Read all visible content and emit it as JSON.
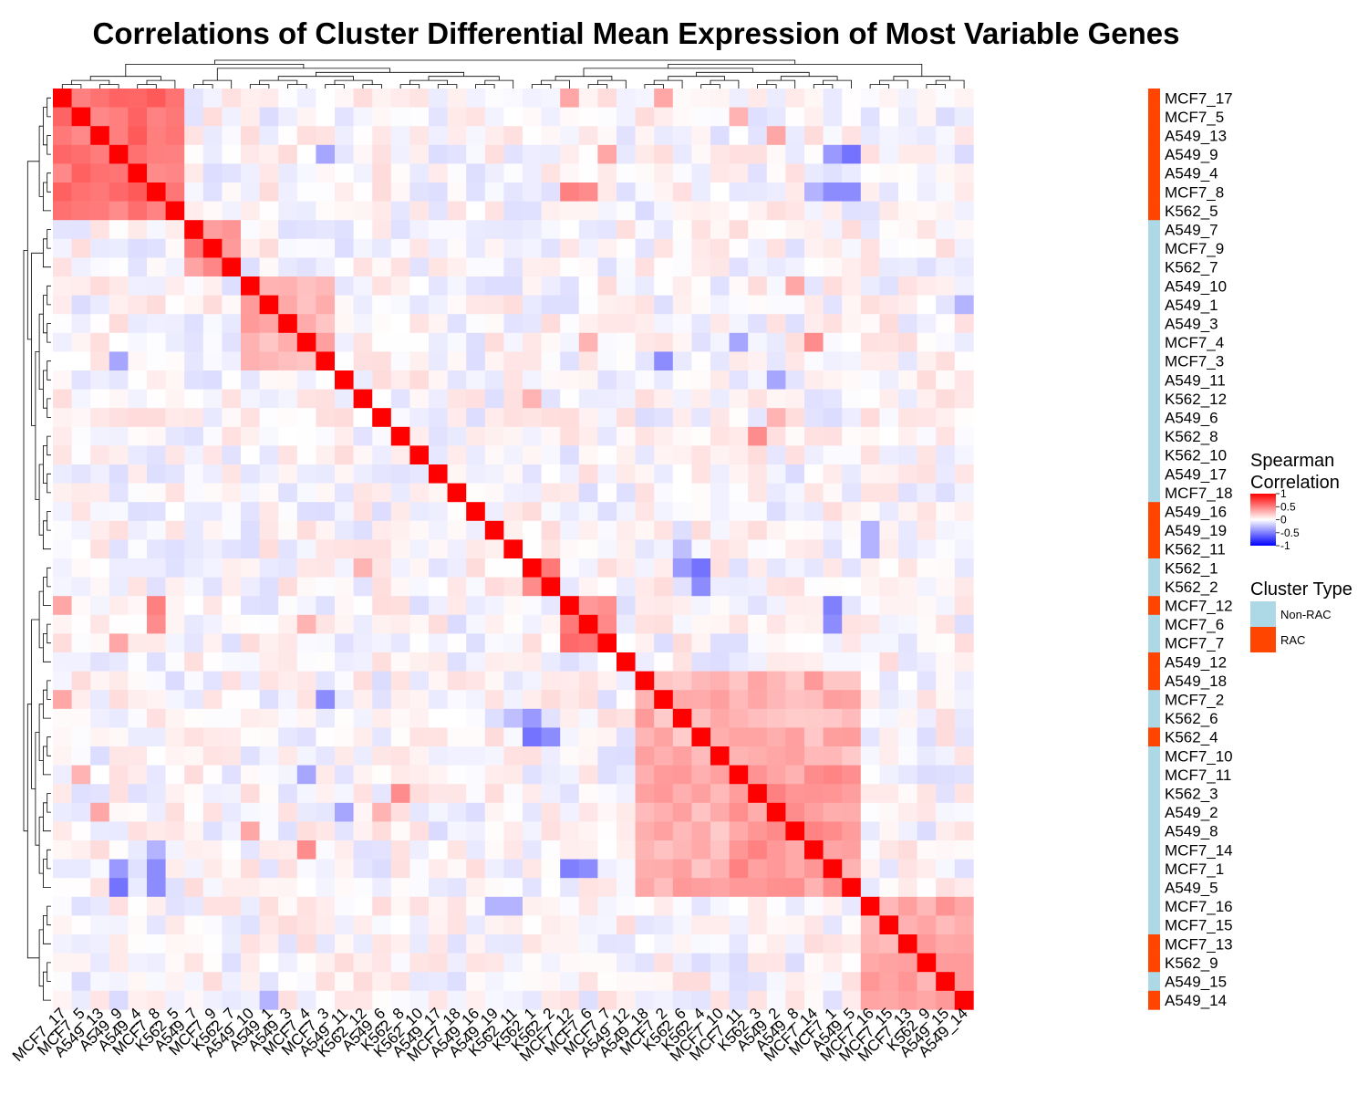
{
  "chart_data": {
    "type": "heatmap",
    "title": "Correlations of Cluster Differential Mean Expression of Most Variable Genes",
    "labels": [
      "MCF7_17",
      "MCF7_5",
      "A549_13",
      "A549_9",
      "A549_4",
      "MCF7_8",
      "K562_5",
      "A549_7",
      "MCF7_9",
      "K562_7",
      "A549_10",
      "A549_1",
      "A549_3",
      "MCF7_4",
      "MCF7_3",
      "A549_11",
      "K562_12",
      "A549_6",
      "K562_8",
      "K562_10",
      "A549_17",
      "MCF7_18",
      "A549_16",
      "A549_19",
      "K562_11",
      "K562_1",
      "K562_2",
      "MCF7_12",
      "MCF7_6",
      "MCF7_7",
      "A549_12",
      "A549_18",
      "MCF7_2",
      "K562_6",
      "K562_4",
      "MCF7_10",
      "MCF7_11",
      "K562_3",
      "A549_2",
      "A549_8",
      "MCF7_14",
      "MCF7_1",
      "A549_5",
      "MCF7_16",
      "MCF7_15",
      "MCF7_13",
      "K562_9",
      "A549_15",
      "A549_14"
    ],
    "cluster_type": [
      "RAC",
      "RAC",
      "RAC",
      "RAC",
      "RAC",
      "RAC",
      "RAC",
      "Non-RAC",
      "Non-RAC",
      "Non-RAC",
      "Non-RAC",
      "Non-RAC",
      "Non-RAC",
      "Non-RAC",
      "Non-RAC",
      "Non-RAC",
      "Non-RAC",
      "Non-RAC",
      "Non-RAC",
      "Non-RAC",
      "Non-RAC",
      "Non-RAC",
      "RAC",
      "RAC",
      "RAC",
      "Non-RAC",
      "Non-RAC",
      "RAC",
      "Non-RAC",
      "Non-RAC",
      "RAC",
      "RAC",
      "Non-RAC",
      "Non-RAC",
      "RAC",
      "Non-RAC",
      "Non-RAC",
      "Non-RAC",
      "Non-RAC",
      "Non-RAC",
      "Non-RAC",
      "Non-RAC",
      "Non-RAC",
      "Non-RAC",
      "Non-RAC",
      "RAC",
      "RAC",
      "Non-RAC",
      "RAC"
    ],
    "blocks": [
      {
        "start": 0,
        "end": 6,
        "value": 0.55
      },
      {
        "start": 7,
        "end": 9,
        "value": 0.45
      },
      {
        "start": 10,
        "end": 14,
        "value": 0.3
      },
      {
        "start": 25,
        "end": 26,
        "value": 0.55
      },
      {
        "start": 27,
        "end": 29,
        "value": 0.5
      },
      {
        "start": 31,
        "end": 42,
        "value": 0.3
      },
      {
        "start": 36,
        "end": 42,
        "value": 0.4
      },
      {
        "start": 43,
        "end": 48,
        "value": 0.35
      }
    ],
    "off_block_pairs": [
      {
        "a": 0,
        "b": 27,
        "value": 0.35
      },
      {
        "a": 5,
        "b": 27,
        "value": 0.5
      },
      {
        "a": 5,
        "b": 28,
        "value": 0.45
      },
      {
        "a": 3,
        "b": 29,
        "value": 0.35
      },
      {
        "a": 0,
        "b": 32,
        "value": 0.35
      },
      {
        "a": 5,
        "b": 41,
        "value": -0.45
      },
      {
        "a": 3,
        "b": 42,
        "value": -0.55
      },
      {
        "a": 5,
        "b": 42,
        "value": -0.45
      },
      {
        "a": 3,
        "b": 41,
        "value": -0.4
      },
      {
        "a": 14,
        "b": 32,
        "value": -0.45
      },
      {
        "a": 14,
        "b": 3,
        "value": -0.35
      },
      {
        "a": 25,
        "b": 34,
        "value": -0.55
      },
      {
        "a": 26,
        "b": 34,
        "value": -0.45
      },
      {
        "a": 25,
        "b": 33,
        "value": -0.4
      },
      {
        "a": 27,
        "b": 41,
        "value": -0.5
      },
      {
        "a": 28,
        "b": 41,
        "value": -0.45
      },
      {
        "a": 18,
        "b": 37,
        "value": 0.45
      },
      {
        "a": 10,
        "b": 39,
        "value": 0.35
      },
      {
        "a": 13,
        "b": 40,
        "value": 0.45
      },
      {
        "a": 16,
        "b": 25,
        "value": 0.3
      },
      {
        "a": 13,
        "b": 28,
        "value": 0.3
      },
      {
        "a": 2,
        "b": 38,
        "value": 0.35
      },
      {
        "a": 17,
        "b": 38,
        "value": 0.3
      },
      {
        "a": 13,
        "b": 36,
        "value": -0.35
      },
      {
        "a": 5,
        "b": 40,
        "value": -0.3
      },
      {
        "a": 15,
        "b": 38,
        "value": -0.35
      },
      {
        "a": 23,
        "b": 43,
        "value": -0.3
      },
      {
        "a": 24,
        "b": 43,
        "value": -0.3
      },
      {
        "a": 24,
        "b": 33,
        "value": -0.25
      },
      {
        "a": 11,
        "b": 48,
        "value": -0.3
      },
      {
        "a": 1,
        "b": 36,
        "value": 0.3
      }
    ],
    "diagonal": 1,
    "scale": {
      "min": -1,
      "max": 1,
      "colors": [
        "#0000ff",
        "#ffffff",
        "#ff0000"
      ]
    },
    "legend": {
      "title": [
        "Spearman",
        "Correlation"
      ],
      "ticks": [
        "1",
        "0.5",
        "0",
        "-0.5",
        "-1"
      ],
      "tick_values": [
        1,
        0.5,
        0,
        -0.5,
        -1
      ],
      "placement": "right"
    },
    "annotation": {
      "title": "Cluster Type",
      "entries": [
        {
          "name": "Non-RAC",
          "color": "#add8e6"
        },
        {
          "name": "RAC",
          "color": "#ff4500"
        }
      ]
    }
  }
}
